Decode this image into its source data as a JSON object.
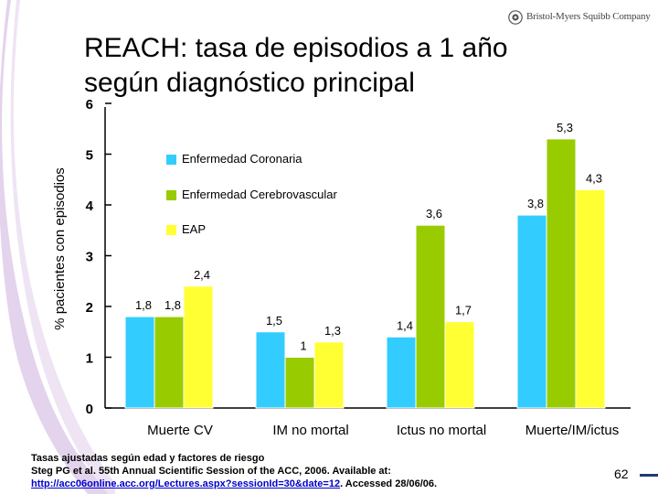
{
  "title": {
    "line1": "REACH: tasa de episodios a 1 año",
    "line2": "según diagnóstico principal"
  },
  "logo": {
    "text": "Bristol-Myers Squibb Company",
    "icon": "bms-logo-icon"
  },
  "colors": {
    "coronaria": "#33ccff",
    "cerebrovascular": "#99cc00",
    "eap": "#ffff33",
    "axis": "#000000",
    "decor": "#d9c5e6",
    "link": "#0000cc"
  },
  "chart_data": {
    "type": "bar",
    "title": "REACH: tasa de episodios a 1 año según diagnóstico principal",
    "ylabel": "% pacientes con episodios",
    "xlabel": "",
    "ylim": [
      0,
      6
    ],
    "yticks": [
      0,
      1,
      2,
      3,
      4,
      5,
      6
    ],
    "grid": false,
    "legend_position": "top-left",
    "categories": [
      "Muerte CV",
      "IM no mortal",
      "Ictus no mortal",
      "Muerte/IM/ictus"
    ],
    "series": [
      {
        "name": "Enfermedad Coronaria",
        "values": [
          1.8,
          1.5,
          1.4,
          3.8
        ],
        "labels": [
          "1,8",
          "1,5",
          "1,4",
          "3,8"
        ]
      },
      {
        "name": "Enfermedad Cerebrovascular",
        "values": [
          1.8,
          1.0,
          3.6,
          5.3
        ],
        "labels": [
          "1,8",
          "1",
          "3,6",
          "5,3"
        ]
      },
      {
        "name": "EAP",
        "values": [
          2.4,
          1.3,
          1.7,
          4.3
        ],
        "labels": [
          "2,4",
          "1,3",
          "1,7",
          "4,3"
        ]
      }
    ]
  },
  "footer": {
    "line1": "Tasas ajustadas según edad y factores de riesgo",
    "line2": "Steg PG et al. 55th Annual Scientific Session of the ACC, 2006. Available at:",
    "link": "http://acc06online.acc.org/Lectures.aspx?sessionId=30&date=12",
    "line3_suffix": ". Accessed 28/06/06."
  },
  "page_number": "62"
}
